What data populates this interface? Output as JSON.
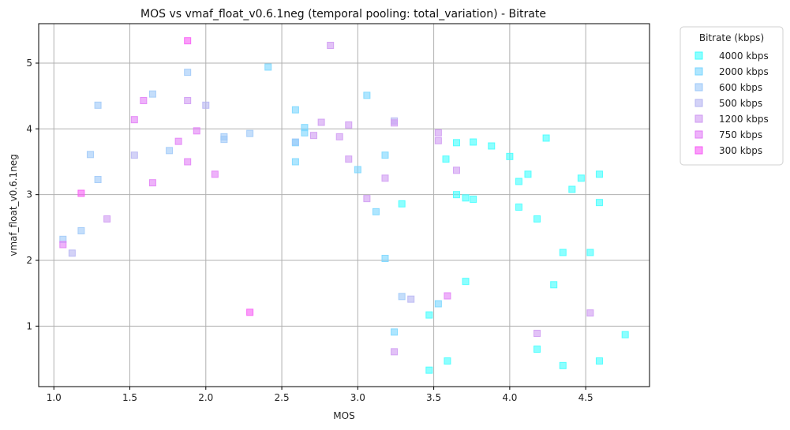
{
  "chart_data": {
    "type": "scatter",
    "title": "MOS vs vmaf_float_v0.6.1neg (temporal pooling: total_variation) - Bitrate",
    "xlabel": "MOS",
    "ylabel": "vmaf_float_v0.6.1neg",
    "xlim": [
      0.9,
      4.92
    ],
    "ylim": [
      0.08,
      5.6
    ],
    "xticks": [
      "1.0",
      "1.5",
      "2.0",
      "2.5",
      "3.0",
      "3.5",
      "4.0",
      "4.5"
    ],
    "yticks": [
      "1",
      "2",
      "3",
      "4",
      "5"
    ],
    "grid": true,
    "legend_title": "Bitrate (kbps)",
    "legend_position": "outside-top-right",
    "series": [
      {
        "name": "4000 kbps",
        "color": "#40ffff",
        "points": [
          [
            3.65,
            3.79
          ],
          [
            3.76,
            3.8
          ],
          [
            3.88,
            3.74
          ],
          [
            3.71,
            2.95
          ],
          [
            3.76,
            2.93
          ],
          [
            3.65,
            3.0
          ],
          [
            3.58,
            3.54
          ],
          [
            4.0,
            3.58
          ],
          [
            4.06,
            3.2
          ],
          [
            4.12,
            3.31
          ],
          [
            4.24,
            3.86
          ],
          [
            4.06,
            2.81
          ],
          [
            4.18,
            2.63
          ],
          [
            4.41,
            3.08
          ],
          [
            4.47,
            3.25
          ],
          [
            4.59,
            3.31
          ],
          [
            4.59,
            2.88
          ],
          [
            4.35,
            2.12
          ],
          [
            4.53,
            2.12
          ],
          [
            4.29,
            1.63
          ],
          [
            4.18,
            0.65
          ],
          [
            4.35,
            0.4
          ],
          [
            4.59,
            0.47
          ],
          [
            4.76,
            0.87
          ],
          [
            3.71,
            1.68
          ],
          [
            3.47,
            1.17
          ],
          [
            3.47,
            0.33
          ],
          [
            3.59,
            0.47
          ],
          [
            3.29,
            2.86
          ]
        ]
      },
      {
        "name": "2000 kbps",
        "color": "#78d6ff",
        "points": [
          [
            3.06,
            4.51
          ],
          [
            3.18,
            3.6
          ],
          [
            3.0,
            3.38
          ],
          [
            3.12,
            2.74
          ],
          [
            2.59,
            4.29
          ],
          [
            2.59,
            3.79
          ],
          [
            2.59,
            3.5
          ],
          [
            2.65,
            4.02
          ],
          [
            2.65,
            3.94
          ],
          [
            3.18,
            2.03
          ],
          [
            3.24,
            0.91
          ],
          [
            3.53,
            1.34
          ],
          [
            2.41,
            4.94
          ]
        ]
      },
      {
        "name": "600 kbps",
        "color": "#9dc8f8",
        "points": [
          [
            1.29,
            4.36
          ],
          [
            1.65,
            4.53
          ],
          [
            1.88,
            4.86
          ],
          [
            1.24,
            3.61
          ],
          [
            1.29,
            3.23
          ],
          [
            1.76,
            3.67
          ],
          [
            2.12,
            3.88
          ],
          [
            2.12,
            3.84
          ],
          [
            2.29,
            3.93
          ],
          [
            1.06,
            2.32
          ],
          [
            1.18,
            2.45
          ],
          [
            3.29,
            1.45
          ],
          [
            2.59,
            3.8
          ]
        ]
      },
      {
        "name": "500 kbps",
        "color": "#b6b4f2",
        "points": [
          [
            1.53,
            3.6
          ],
          [
            2.0,
            4.36
          ],
          [
            1.12,
            2.11
          ],
          [
            3.35,
            1.41
          ],
          [
            3.24,
            4.12
          ]
        ]
      },
      {
        "name": "1200 kbps",
        "color": "#cf9af2",
        "points": [
          [
            1.88,
            4.43
          ],
          [
            2.76,
            4.1
          ],
          [
            2.71,
            3.9
          ],
          [
            2.88,
            3.88
          ],
          [
            2.94,
            4.06
          ],
          [
            2.94,
            3.54
          ],
          [
            3.18,
            3.25
          ],
          [
            3.06,
            2.94
          ],
          [
            3.53,
            3.94
          ],
          [
            3.53,
            3.82
          ],
          [
            3.65,
            3.37
          ],
          [
            1.35,
            2.63
          ],
          [
            2.82,
            5.27
          ],
          [
            3.24,
            0.61
          ],
          [
            4.18,
            0.89
          ],
          [
            4.53,
            1.2
          ],
          [
            3.24,
            4.09
          ]
        ]
      },
      {
        "name": "750 kbps",
        "color": "#e27ef6",
        "points": [
          [
            1.59,
            4.43
          ],
          [
            1.53,
            4.14
          ],
          [
            1.94,
            3.97
          ],
          [
            1.82,
            3.81
          ],
          [
            1.88,
            3.5
          ],
          [
            2.06,
            3.31
          ],
          [
            1.65,
            3.18
          ],
          [
            1.06,
            2.24
          ],
          [
            3.59,
            1.46
          ]
        ]
      },
      {
        "name": "300 kbps",
        "color": "#f75cf5",
        "points": [
          [
            1.88,
            5.34
          ],
          [
            1.18,
            3.02
          ],
          [
            2.29,
            1.21
          ]
        ]
      }
    ]
  }
}
